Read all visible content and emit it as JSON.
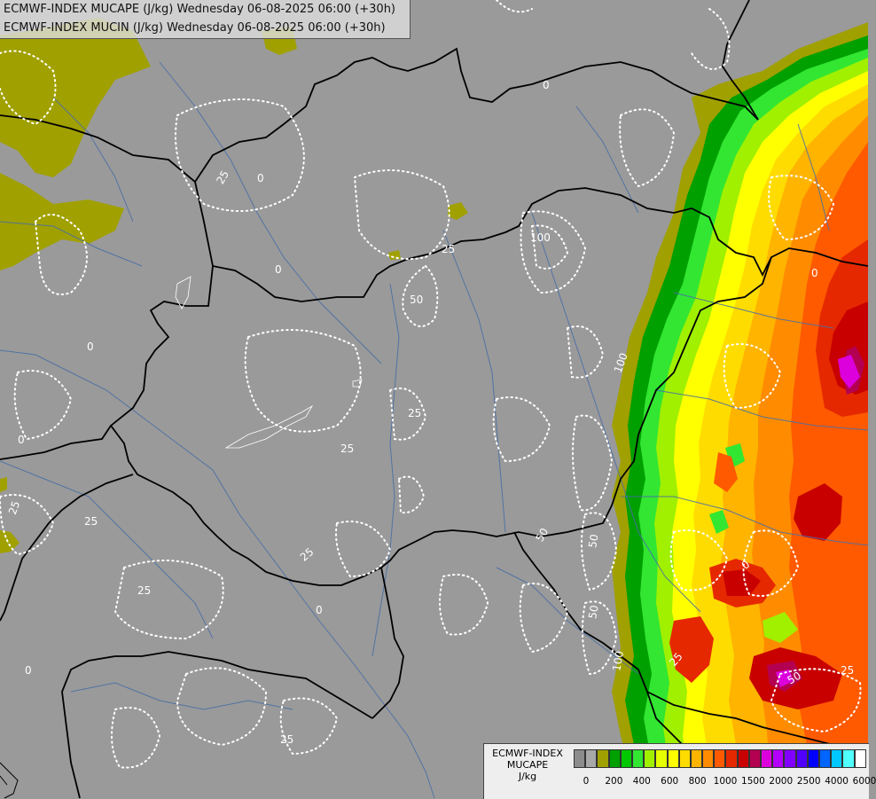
{
  "titles": {
    "line1": "ECMWF-INDEX MUCAPE (J/kg) Wednesday 06-08-2025 06:00 (+30h)",
    "line2": "ECMWF-INDEX MUCIN (J/kg) Wednesday 06-08-2025 06:00 (+30h)"
  },
  "legend": {
    "line1": "ECMWF-INDEX",
    "line2": "MUCAPE",
    "line3": "J/kg",
    "colors": [
      "#8c8c8c",
      "#a8a8a8",
      "#a0a000",
      "#00a000",
      "#00c800",
      "#32e632",
      "#a0f000",
      "#e6ff00",
      "#ffff00",
      "#ffdc00",
      "#ffb400",
      "#ff8c00",
      "#ff5a00",
      "#e62800",
      "#c80000",
      "#b40050",
      "#dc00dc",
      "#b400ff",
      "#8200ff",
      "#5000ff",
      "#0000ff",
      "#0064ff",
      "#00c8ff",
      "#50ffff",
      "#ffffff"
    ],
    "ticks": [
      "0",
      "200",
      "400",
      "600",
      "800",
      "1000",
      "1500",
      "2000",
      "2500",
      "4000",
      "6000"
    ]
  },
  "contour_labels": [
    "25",
    "0",
    "0",
    "25",
    "0",
    "50",
    "100",
    "100",
    "0",
    "25",
    "25",
    "0",
    "25",
    "50",
    "50",
    "100",
    "25",
    "0",
    "50",
    "25",
    "25",
    "0",
    "25",
    "50",
    "25",
    "0",
    "0",
    "25"
  ],
  "colors": {
    "background": "#9a9a9a",
    "border": "#000000",
    "river": "#4a6fa5",
    "contour": "#ffffff",
    "low_cape": "#a0a000"
  }
}
